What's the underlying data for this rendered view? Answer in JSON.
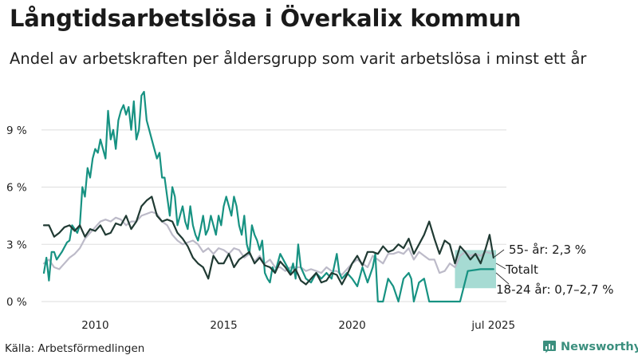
{
  "title": "Långtidsarbetslösa i Överkalix kommun",
  "subtitle": "Andel av arbetskraften per åldersgrupp som varit arbetslösa i minst ett år",
  "source": "Källa: Arbetsförmedlingen",
  "brand": "Newsworthy",
  "colors": {
    "youth": "#179282",
    "youth_band": "#88cfc4",
    "older": "#203a33",
    "total": "#bcbac8",
    "grid": "#dddddd",
    "brand": "#3b8f7e"
  },
  "chart_data": {
    "type": "line",
    "title": "Långtidsarbetslösa i Överkalix kommun",
    "ylabel": "",
    "ylim": [
      0,
      11
    ],
    "y_ticks": [
      0,
      3,
      6,
      9
    ],
    "y_tick_labels": [
      "0 %",
      "3 %",
      "6 %",
      "9 %"
    ],
    "x_ticks": [
      2010,
      2015,
      2020,
      2025.5
    ],
    "x_tick_labels": [
      "2010",
      "2015",
      "2020",
      "jul 2025"
    ],
    "xlim": [
      2008.0,
      2025.6
    ],
    "grid": true,
    "legend": "inline labels at right end",
    "series": [
      {
        "name": "18-24 år",
        "end_label": "18-24 år: 0,7–2,7 %",
        "x": [
          2008.0,
          2008.1,
          2008.2,
          2008.3,
          2008.4,
          2008.5,
          2008.7,
          2008.9,
          2009.0,
          2009.1,
          2009.2,
          2009.3,
          2009.4,
          2009.5,
          2009.6,
          2009.7,
          2009.8,
          2009.9,
          2010.0,
          2010.1,
          2010.2,
          2010.3,
          2010.4,
          2010.5,
          2010.6,
          2010.7,
          2010.8,
          2010.9,
          2011.0,
          2011.1,
          2011.2,
          2011.3,
          2011.4,
          2011.5,
          2011.6,
          2011.7,
          2011.8,
          2011.9,
          2012.0,
          2012.1,
          2012.2,
          2012.3,
          2012.4,
          2012.5,
          2012.6,
          2012.7,
          2012.8,
          2012.9,
          2013.0,
          2013.1,
          2013.2,
          2013.3,
          2013.4,
          2013.5,
          2013.6,
          2013.7,
          2013.8,
          2013.9,
          2014.0,
          2014.1,
          2014.2,
          2014.3,
          2014.4,
          2014.5,
          2014.6,
          2014.7,
          2014.8,
          2014.9,
          2015.0,
          2015.1,
          2015.2,
          2015.3,
          2015.4,
          2015.5,
          2015.6,
          2015.7,
          2015.8,
          2015.9,
          2016.0,
          2016.1,
          2016.2,
          2016.3,
          2016.4,
          2016.5,
          2016.6,
          2016.7,
          2016.8,
          2016.9,
          2017.0,
          2017.2,
          2017.4,
          2017.6,
          2017.7,
          2017.8,
          2017.9,
          2018.0,
          2018.2,
          2018.4,
          2018.6,
          2018.8,
          2019.0,
          2019.2,
          2019.4,
          2019.5,
          2019.6,
          2019.8,
          2020.0,
          2020.2,
          2020.4,
          2020.6,
          2020.8,
          2020.9,
          2021.0,
          2021.2,
          2021.4,
          2021.6,
          2021.8,
          2022.0,
          2022.2,
          2022.3,
          2022.4,
          2022.6,
          2022.8,
          2023.0,
          2023.2,
          2023.4,
          2023.6,
          2023.8,
          2024.0,
          2024.2,
          2024.5,
          2025.0,
          2025.5
        ],
        "values": [
          1.5,
          2.3,
          1.1,
          2.6,
          2.6,
          2.2,
          2.6,
          3.1,
          3.2,
          4.0,
          3.8,
          3.6,
          4.0,
          6.0,
          5.5,
          7.0,
          6.5,
          7.5,
          8.0,
          7.8,
          8.5,
          8.0,
          7.5,
          10.0,
          8.5,
          9.0,
          8.0,
          9.5,
          10.0,
          10.3,
          9.8,
          10.2,
          9.0,
          10.5,
          8.5,
          9.0,
          10.8,
          11.0,
          9.5,
          9.0,
          8.5,
          8.0,
          7.5,
          7.8,
          6.5,
          6.5,
          5.5,
          4.5,
          6.0,
          5.5,
          4.0,
          4.5,
          5.0,
          4.2,
          3.8,
          5.0,
          4.0,
          3.5,
          3.2,
          3.8,
          4.5,
          3.5,
          3.8,
          4.5,
          4.0,
          3.5,
          4.5,
          4.0,
          5.0,
          5.5,
          5.0,
          4.5,
          5.5,
          5.0,
          4.0,
          3.5,
          4.5,
          3.0,
          2.5,
          4.0,
          3.5,
          3.2,
          2.7,
          3.2,
          1.5,
          1.2,
          1.0,
          1.8,
          1.5,
          2.5,
          2.0,
          1.5,
          2.0,
          1.2,
          3.0,
          1.8,
          1.2,
          1.0,
          1.5,
          1.2,
          1.5,
          1.2,
          2.5,
          1.5,
          1.2,
          1.5,
          1.2,
          0.8,
          1.8,
          1.0,
          1.8,
          2.5,
          0.0,
          0.0,
          1.2,
          0.8,
          0.0,
          1.2,
          1.5,
          1.2,
          0.0,
          1.0,
          1.2,
          0.0,
          0.0,
          0.0,
          0.0,
          0.0,
          0.0,
          0.0,
          1.6,
          1.7,
          1.7
        ]
      },
      {
        "name": "55- år",
        "end_label": "55- år: 2,3 %",
        "x": [
          2008.0,
          2008.2,
          2008.4,
          2008.6,
          2008.8,
          2009.0,
          2009.2,
          2009.4,
          2009.6,
          2009.8,
          2010.0,
          2010.2,
          2010.4,
          2010.6,
          2010.8,
          2011.0,
          2011.2,
          2011.4,
          2011.6,
          2011.8,
          2012.0,
          2012.2,
          2012.4,
          2012.6,
          2012.8,
          2013.0,
          2013.2,
          2013.4,
          2013.6,
          2013.8,
          2014.0,
          2014.2,
          2014.4,
          2014.6,
          2014.8,
          2015.0,
          2015.2,
          2015.4,
          2015.6,
          2015.8,
          2016.0,
          2016.2,
          2016.4,
          2016.6,
          2016.8,
          2017.0,
          2017.2,
          2017.4,
          2017.6,
          2017.8,
          2018.0,
          2018.2,
          2018.4,
          2018.6,
          2018.8,
          2019.0,
          2019.2,
          2019.4,
          2019.6,
          2019.8,
          2020.0,
          2020.2,
          2020.4,
          2020.6,
          2020.8,
          2021.0,
          2021.2,
          2021.4,
          2021.6,
          2021.8,
          2022.0,
          2022.2,
          2022.4,
          2022.6,
          2022.8,
          2023.0,
          2023.2,
          2023.4,
          2023.6,
          2023.8,
          2024.0,
          2024.2,
          2024.4,
          2024.6,
          2024.8,
          2025.0,
          2025.2,
          2025.35,
          2025.5
        ],
        "values": [
          4.0,
          4.0,
          3.4,
          3.6,
          3.9,
          4.0,
          3.7,
          4.0,
          3.4,
          3.8,
          3.7,
          4.0,
          3.5,
          3.6,
          4.1,
          4.0,
          4.5,
          3.8,
          4.2,
          5.0,
          5.3,
          5.5,
          4.5,
          4.2,
          4.3,
          4.2,
          3.6,
          3.3,
          2.9,
          2.3,
          2.0,
          1.8,
          1.2,
          2.4,
          2.0,
          2.0,
          2.5,
          1.8,
          2.2,
          2.4,
          2.6,
          2.0,
          2.3,
          1.9,
          1.8,
          1.5,
          2.1,
          1.8,
          1.4,
          1.7,
          1.1,
          0.9,
          1.2,
          1.5,
          1.0,
          1.1,
          1.5,
          1.4,
          0.9,
          1.4,
          2.0,
          2.4,
          1.9,
          2.6,
          2.6,
          2.5,
          2.9,
          2.6,
          2.7,
          3.0,
          2.8,
          3.3,
          2.5,
          3.0,
          3.5,
          4.2,
          3.3,
          2.5,
          3.2,
          3.0,
          2.0,
          2.9,
          2.6,
          2.2,
          2.5,
          2.0,
          2.8,
          3.5,
          2.3
        ]
      },
      {
        "name": "Totalt",
        "end_label": "Totalt",
        "x": [
          2008.0,
          2008.2,
          2008.4,
          2008.6,
          2008.8,
          2009.0,
          2009.2,
          2009.4,
          2009.6,
          2009.8,
          2010.0,
          2010.2,
          2010.4,
          2010.6,
          2010.8,
          2011.0,
          2011.2,
          2011.4,
          2011.6,
          2011.8,
          2012.0,
          2012.2,
          2012.4,
          2012.6,
          2012.8,
          2013.0,
          2013.2,
          2013.4,
          2013.6,
          2013.8,
          2014.0,
          2014.2,
          2014.4,
          2014.6,
          2014.8,
          2015.0,
          2015.2,
          2015.4,
          2015.6,
          2015.8,
          2016.0,
          2016.2,
          2016.4,
          2016.6,
          2016.8,
          2017.0,
          2017.2,
          2017.4,
          2017.6,
          2017.8,
          2018.0,
          2018.2,
          2018.4,
          2018.6,
          2018.8,
          2019.0,
          2019.2,
          2019.4,
          2019.6,
          2019.8,
          2020.0,
          2020.2,
          2020.4,
          2020.6,
          2020.8,
          2021.0,
          2021.2,
          2021.4,
          2021.6,
          2021.8,
          2022.0,
          2022.2,
          2022.4,
          2022.6,
          2022.8,
          2023.0,
          2023.2,
          2023.4,
          2023.6,
          2023.8,
          2024.0,
          2024.2,
          2024.4,
          2024.6,
          2024.8,
          2025.0,
          2025.2,
          2025.5
        ],
        "values": [
          2.0,
          2.2,
          1.8,
          1.7,
          2.0,
          2.3,
          2.5,
          2.8,
          3.3,
          3.6,
          3.9,
          4.2,
          4.3,
          4.2,
          4.4,
          4.3,
          4.0,
          4.2,
          4.2,
          4.5,
          4.6,
          4.7,
          4.6,
          4.2,
          4.0,
          3.5,
          3.2,
          3.0,
          3.1,
          3.2,
          3.0,
          2.6,
          2.8,
          2.5,
          2.8,
          2.7,
          2.5,
          2.8,
          2.7,
          2.3,
          2.5,
          2.1,
          2.4,
          2.0,
          2.2,
          1.8,
          1.8,
          1.6,
          1.8,
          1.8,
          1.8,
          1.6,
          1.7,
          1.6,
          1.5,
          1.8,
          1.6,
          1.6,
          1.4,
          1.7,
          2.0,
          2.2,
          2.0,
          1.8,
          2.4,
          2.2,
          2.0,
          2.5,
          2.5,
          2.6,
          2.5,
          2.8,
          2.2,
          2.6,
          2.4,
          2.2,
          2.2,
          1.5,
          1.6,
          2.0,
          1.8,
          2.4,
          2.6,
          2.4,
          2.5,
          2.4,
          2.6,
          2.5
        ]
      }
    ],
    "band": {
      "name": "18-24 år",
      "x_start": 2024.0,
      "x_end": 2025.6,
      "low": 0.7,
      "high": 2.7
    }
  }
}
